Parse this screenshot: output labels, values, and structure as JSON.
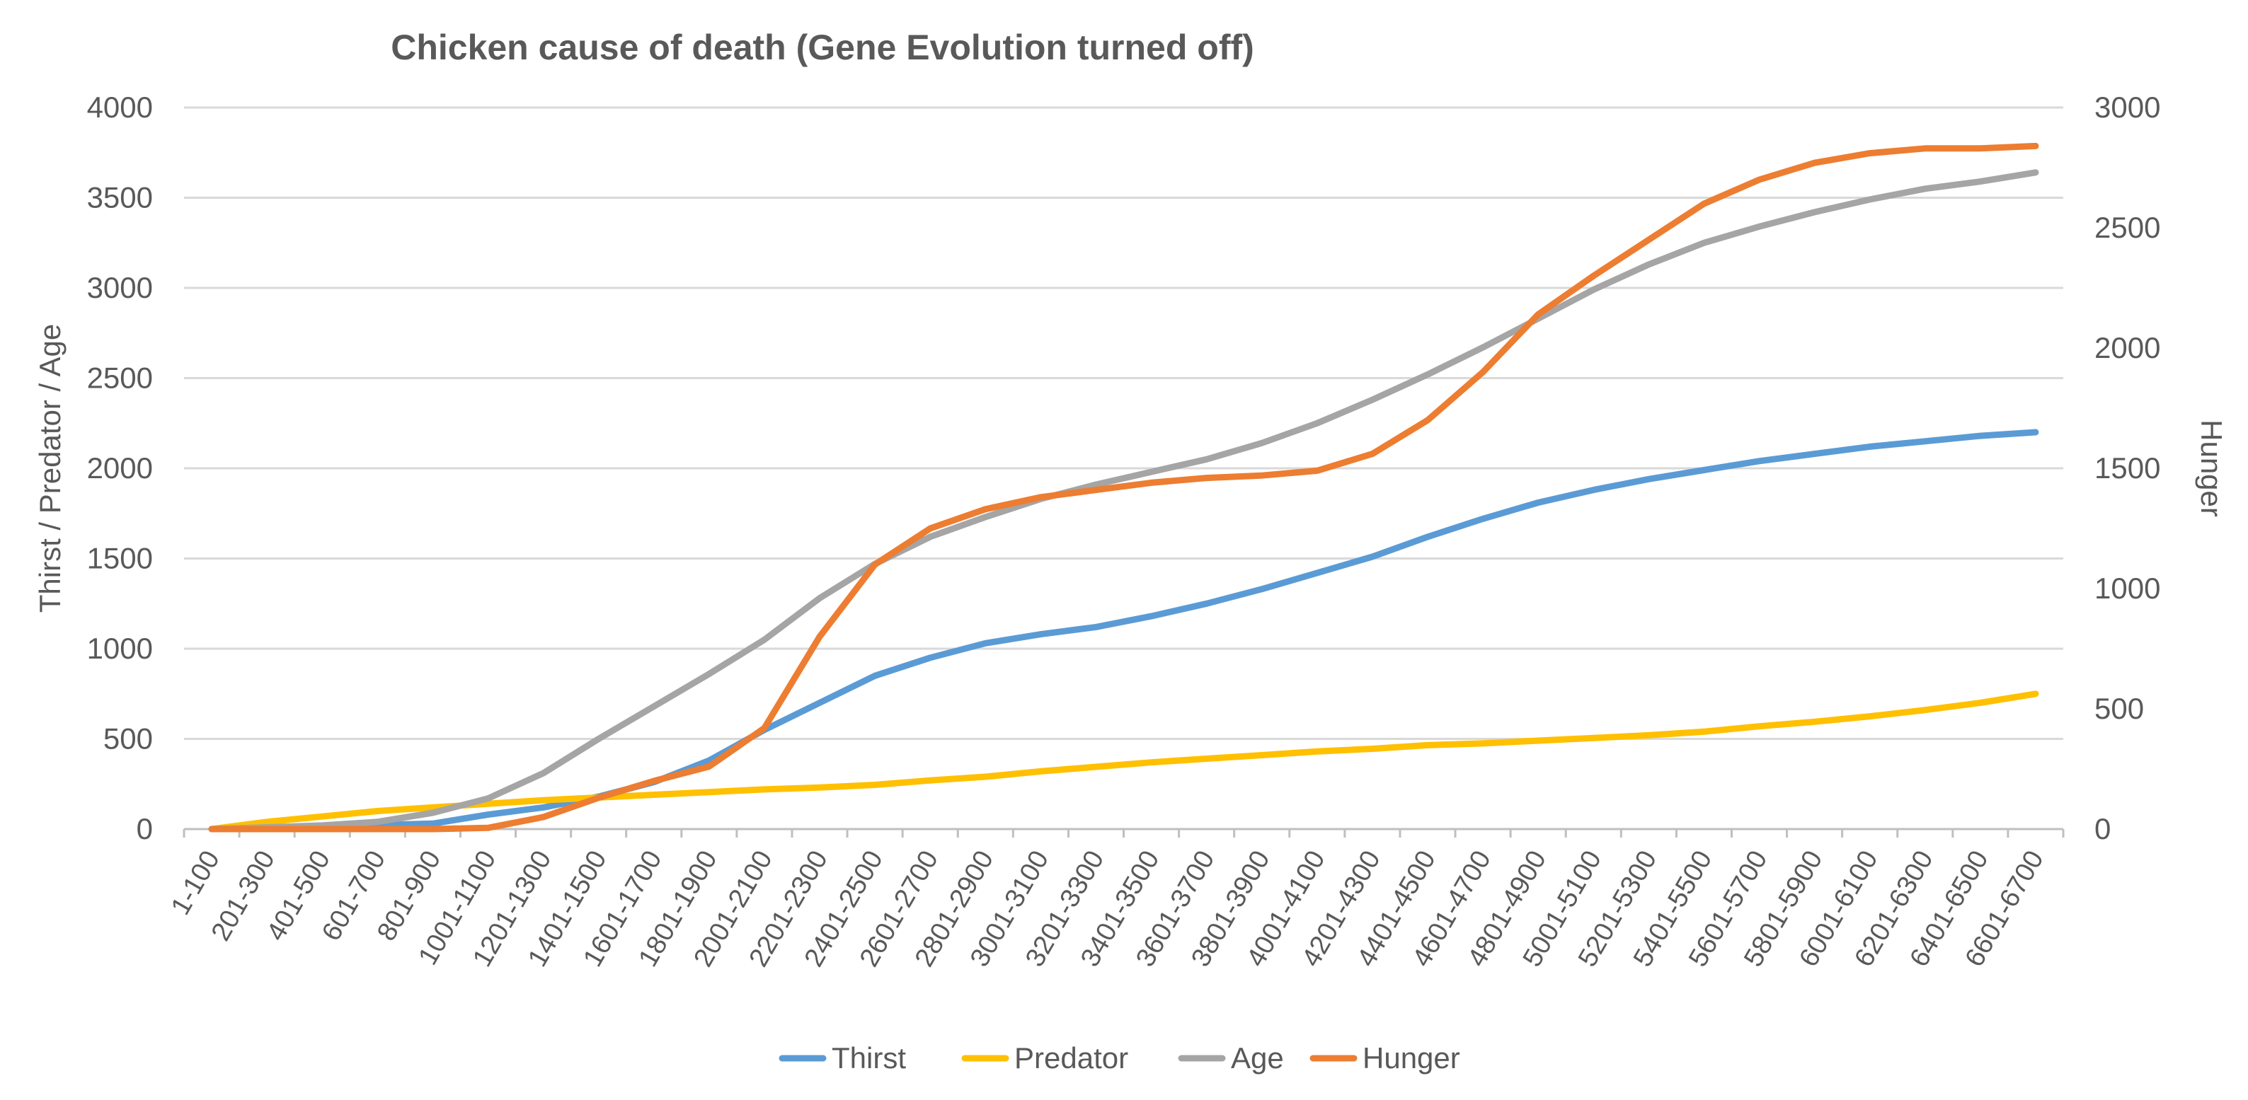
{
  "chart_data": {
    "type": "line",
    "title": "Chicken cause of death (Gene Evolution turned off)",
    "ylabel": "Thirst / Predator / Age",
    "y2label": "Hunger",
    "ylim": [
      0,
      4000
    ],
    "y2lim": [
      0,
      3000
    ],
    "yticks": [
      "0",
      "500",
      "1000",
      "1500",
      "2000",
      "2500",
      "3000",
      "3500",
      "4000"
    ],
    "y2ticks": [
      "0",
      "500",
      "1000",
      "1500",
      "2000",
      "2500",
      "3000"
    ],
    "xtick_labels": [
      "1-100",
      "201-300",
      "401-500",
      "601-700",
      "801-900",
      "1001-1100",
      "1201-1300",
      "1401-1500",
      "1601-1700",
      "1801-1900",
      "2001-2100",
      "2201-2300",
      "2401-2500",
      "2601-2700",
      "2801-2900",
      "3001-3100",
      "3201-3300",
      "3401-3500",
      "3601-3700",
      "3801-3900",
      "4001-4100",
      "4201-4300",
      "4401-4500",
      "4601-4700",
      "4801-4900",
      "5001-5100",
      "5201-5300",
      "5401-5500",
      "5601-5700",
      "5801-5900",
      "6001-6100",
      "6201-6300",
      "6401-6500",
      "6601-6700"
    ],
    "legend_position": "bottom",
    "series": [
      {
        "name": "Thirst",
        "axis": "left",
        "color": "#5b9bd5",
        "points": [
          [
            0,
            0
          ],
          [
            4,
            30
          ],
          [
            5,
            80
          ],
          [
            6,
            120
          ],
          [
            7,
            180
          ],
          [
            8,
            260
          ],
          [
            9,
            380
          ],
          [
            10,
            550
          ],
          [
            11,
            700
          ],
          [
            12,
            850
          ],
          [
            13,
            950
          ],
          [
            14,
            1030
          ],
          [
            15,
            1080
          ],
          [
            16,
            1120
          ],
          [
            17,
            1180
          ],
          [
            18,
            1250
          ],
          [
            19,
            1330
          ],
          [
            20,
            1420
          ],
          [
            21,
            1510
          ],
          [
            22,
            1620
          ],
          [
            23,
            1720
          ],
          [
            24,
            1810
          ],
          [
            25,
            1880
          ],
          [
            26,
            1940
          ],
          [
            27,
            1990
          ],
          [
            28,
            2040
          ],
          [
            29,
            2080
          ],
          [
            30,
            2120
          ],
          [
            31,
            2150
          ],
          [
            32,
            2180
          ],
          [
            33,
            2200
          ]
        ]
      },
      {
        "name": "Predator",
        "axis": "left",
        "color": "#ffc000",
        "points": [
          [
            0,
            0
          ],
          [
            1,
            40
          ],
          [
            2,
            70
          ],
          [
            3,
            100
          ],
          [
            4,
            120
          ],
          [
            5,
            140
          ],
          [
            6,
            160
          ],
          [
            7,
            175
          ],
          [
            8,
            190
          ],
          [
            9,
            205
          ],
          [
            10,
            220
          ],
          [
            11,
            230
          ],
          [
            12,
            245
          ],
          [
            13,
            270
          ],
          [
            14,
            290
          ],
          [
            15,
            320
          ],
          [
            16,
            345
          ],
          [
            17,
            370
          ],
          [
            18,
            390
          ],
          [
            19,
            410
          ],
          [
            20,
            430
          ],
          [
            21,
            445
          ],
          [
            22,
            465
          ],
          [
            23,
            475
          ],
          [
            24,
            490
          ],
          [
            25,
            505
          ],
          [
            26,
            520
          ],
          [
            27,
            540
          ],
          [
            28,
            570
          ],
          [
            29,
            595
          ],
          [
            30,
            625
          ],
          [
            31,
            660
          ],
          [
            32,
            700
          ],
          [
            33,
            750
          ]
        ]
      },
      {
        "name": "Age",
        "axis": "left",
        "color": "#a5a5a5",
        "points": [
          [
            0,
            0
          ],
          [
            1,
            10
          ],
          [
            2,
            20
          ],
          [
            3,
            40
          ],
          [
            4,
            90
          ],
          [
            5,
            170
          ],
          [
            6,
            310
          ],
          [
            7,
            500
          ],
          [
            8,
            680
          ],
          [
            9,
            860
          ],
          [
            10,
            1050
          ],
          [
            11,
            1280
          ],
          [
            12,
            1470
          ],
          [
            13,
            1620
          ],
          [
            14,
            1730
          ],
          [
            15,
            1830
          ],
          [
            16,
            1910
          ],
          [
            17,
            1980
          ],
          [
            18,
            2050
          ],
          [
            19,
            2140
          ],
          [
            20,
            2250
          ],
          [
            21,
            2380
          ],
          [
            22,
            2520
          ],
          [
            23,
            2670
          ],
          [
            24,
            2830
          ],
          [
            25,
            2990
          ],
          [
            26,
            3130
          ],
          [
            27,
            3250
          ],
          [
            28,
            3340
          ],
          [
            29,
            3420
          ],
          [
            30,
            3490
          ],
          [
            31,
            3550
          ],
          [
            32,
            3590
          ],
          [
            33,
            3640
          ]
        ]
      },
      {
        "name": "Hunger",
        "axis": "right",
        "color": "#ed7d31",
        "points": [
          [
            0,
            0
          ],
          [
            1,
            0
          ],
          [
            2,
            0
          ],
          [
            3,
            0
          ],
          [
            4,
            0
          ],
          [
            5,
            5
          ],
          [
            6,
            50
          ],
          [
            7,
            130
          ],
          [
            8,
            200
          ],
          [
            9,
            260
          ],
          [
            10,
            420
          ],
          [
            11,
            800
          ],
          [
            12,
            1100
          ],
          [
            13,
            1250
          ],
          [
            14,
            1330
          ],
          [
            15,
            1380
          ],
          [
            16,
            1410
          ],
          [
            17,
            1440
          ],
          [
            18,
            1460
          ],
          [
            19,
            1470
          ],
          [
            20,
            1490
          ],
          [
            21,
            1560
          ],
          [
            22,
            1700
          ],
          [
            23,
            1900
          ],
          [
            24,
            2140
          ],
          [
            25,
            2300
          ],
          [
            26,
            2450
          ],
          [
            27,
            2600
          ],
          [
            28,
            2700
          ],
          [
            29,
            2770
          ],
          [
            30,
            2810
          ],
          [
            31,
            2830
          ],
          [
            32,
            2830
          ],
          [
            33,
            2840
          ]
        ]
      }
    ]
  }
}
